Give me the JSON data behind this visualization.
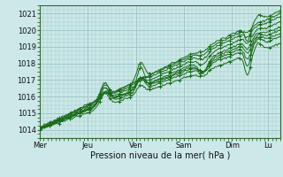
{
  "bg_color": "#cce8e8",
  "grid_color": "#a0c8c8",
  "line_color": "#1a6b1a",
  "xlabel": "Pression niveau de la mer( hPa )",
  "ylim": [
    1013.5,
    1021.5
  ],
  "yticks": [
    1014,
    1015,
    1016,
    1017,
    1018,
    1019,
    1020,
    1021
  ],
  "days": [
    "Mer",
    "Jeu",
    "Ven",
    "Sam",
    "Dim",
    "Lu"
  ],
  "day_positions": [
    0,
    48,
    96,
    144,
    192,
    228
  ],
  "xlim": [
    0,
    240
  ],
  "num_points": 241
}
